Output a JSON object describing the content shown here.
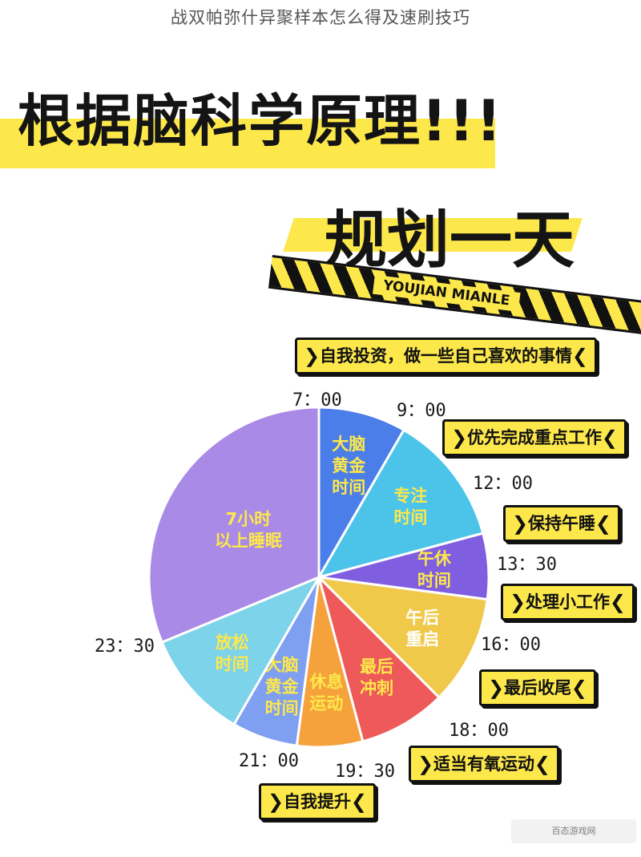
{
  "page_title": "战双帕弥什异聚样本怎么得及速刷技巧",
  "headline": "根据脑科学原理!!!",
  "plan_title": "规划一天",
  "tape_label": "YOUJIAN MIANLE",
  "watermark": "百态游戏网",
  "colors": {
    "accent_yellow": "#fde84b",
    "ink": "#111111"
  },
  "chart_data": {
    "type": "pie",
    "start_time": "7：00",
    "slices": [
      {
        "id": "brain-gold-morning",
        "label": [
          "大脑",
          "黄金",
          "时间"
        ],
        "start": "7：00",
        "end": "9：00",
        "value_hours": 2.0,
        "color": "#4b7ee8",
        "label_color": "#fde84b",
        "activity": "自我投资，做一些自己喜欢的事情"
      },
      {
        "id": "focus-time",
        "label": [
          "专注",
          "时间"
        ],
        "start": "9：00",
        "end": "12：00",
        "value_hours": 3.0,
        "color": "#4cc4ea",
        "label_color": "#fde84b",
        "activity": "优先完成重点工作"
      },
      {
        "id": "noon-rest",
        "label": [
          "午休",
          "时间"
        ],
        "start": "12：00",
        "end": "13：30",
        "value_hours": 1.5,
        "color": "#7f5fe0",
        "label_color": "#fde84b",
        "activity": "保持午睡"
      },
      {
        "id": "afternoon-restart",
        "label": [
          "午后",
          "重启"
        ],
        "start": "13：30",
        "end": "16：00",
        "value_hours": 2.5,
        "color": "#f0c94b",
        "label_color": "#ffffff",
        "activity": "处理小工作"
      },
      {
        "id": "final-sprint",
        "label": [
          "最后",
          "冲刺"
        ],
        "start": "16：00",
        "end": "18：00",
        "value_hours": 2.0,
        "color": "#ee5a5a",
        "label_color": "#fde84b",
        "activity": "最后收尾"
      },
      {
        "id": "rest-exercise",
        "label": [
          "休息",
          "运动"
        ],
        "start": "18：00",
        "end": "19：30",
        "value_hours": 1.5,
        "color": "#f5a23c",
        "label_color": "#fde84b",
        "activity": "适当有氧运动"
      },
      {
        "id": "brain-gold-evening",
        "label": [
          "大脑",
          "黄金",
          "时间"
        ],
        "start": "19：30",
        "end": "21：00",
        "value_hours": 1.5,
        "color": "#7f9ff0",
        "label_color": "#fde84b",
        "activity": "自我提升"
      },
      {
        "id": "relax-time",
        "label": [
          "放松",
          "时间"
        ],
        "start": "21：00",
        "end": "23：30",
        "value_hours": 2.5,
        "color": "#7dd3ea",
        "label_color": "#fde84b",
        "activity": ""
      },
      {
        "id": "sleep",
        "label": [
          "7小时",
          "以上睡眠"
        ],
        "start": "23：30",
        "end": "7：00",
        "value_hours": 7.5,
        "color": "#a98ae6",
        "label_color": "#fde84b",
        "activity": ""
      }
    ]
  }
}
